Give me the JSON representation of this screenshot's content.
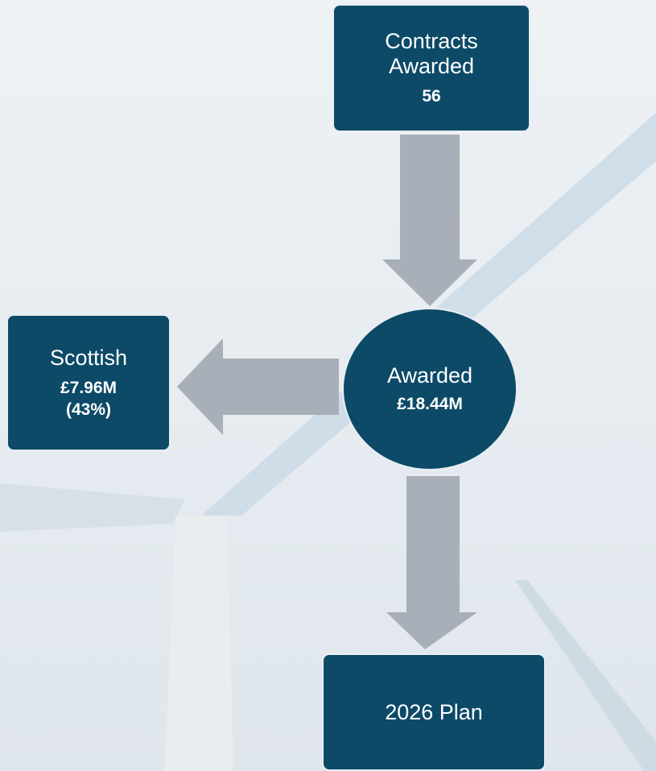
{
  "nodes": [
    {
      "label": "Contracts Awarded",
      "value": "56"
    },
    {
      "label": "Awarded",
      "value": "£18.44M"
    },
    {
      "label": "Scottish",
      "value": "£7.96M",
      "share": "(43%)"
    },
    {
      "label": "2026 Plan"
    }
  ]
}
